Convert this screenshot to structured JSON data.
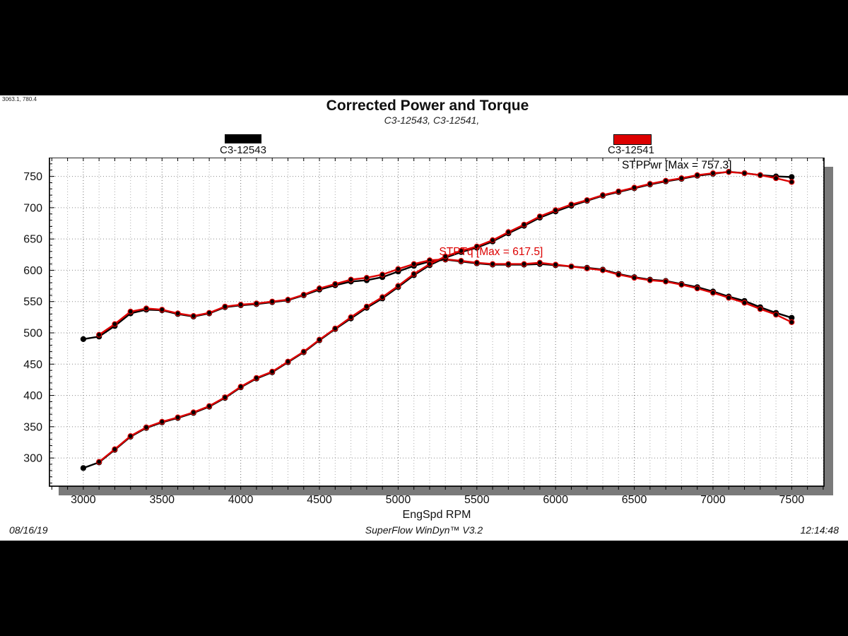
{
  "window": {
    "cursor_readout": "3063.1, 780.4"
  },
  "header": {
    "title": "Corrected Power and Torque",
    "subtitle": "C3-12543, C3-12541,"
  },
  "legend": [
    {
      "label": "C3-12543",
      "color": "#000000"
    },
    {
      "label": "C3-12541",
      "color": "#dd0000"
    }
  ],
  "footer": {
    "date": "08/16/19",
    "app": "SuperFlow WinDyn™ V3.2",
    "time": "12:14:48"
  },
  "chart_data": {
    "type": "line",
    "title": "Corrected Power and Torque",
    "subtitle": "C3-12543, C3-12541,",
    "xlabel": "EngSpd RPM",
    "ylabel": "",
    "axes": {
      "xlim": [
        2785,
        7705
      ],
      "ylim": [
        255,
        780
      ],
      "x_ticks": [
        3000,
        3500,
        4000,
        4500,
        5000,
        5500,
        6000,
        6500,
        7000,
        7500
      ],
      "y_ticks": [
        300,
        350,
        400,
        450,
        500,
        550,
        600,
        650,
        700,
        750
      ],
      "x_grid_minor_step": 100,
      "y_tick_minor_step": 10,
      "grid": "dotted"
    },
    "annotations": [
      {
        "text": "STPPwr [Max = 757.3]",
        "color": "#000000",
        "x": 6770,
        "y": 768
      },
      {
        "text": "STPTq [Max = 617.5]",
        "color": "#dd0000",
        "x": 5590,
        "y": 630
      }
    ],
    "series": [
      {
        "name": "C3-12543 STPTq",
        "run": "C3-12543",
        "channel": "STPTq",
        "color": "#000000",
        "x_start": 3000,
        "x_step": 100,
        "values": [
          490,
          494,
          511,
          531,
          537,
          536,
          530,
          526,
          531,
          541,
          544,
          546,
          549,
          552,
          560,
          569,
          576,
          582,
          584,
          589,
          598,
          607,
          614,
          617,
          614,
          611,
          609,
          609,
          609,
          610,
          608,
          606,
          604,
          601,
          594,
          589,
          585,
          583,
          578,
          573,
          566,
          558,
          551,
          541,
          532,
          524
        ]
      },
      {
        "name": "C3-12541 STPTq",
        "run": "C3-12541",
        "channel": "STPTq",
        "color": "#dd0000",
        "x_start": 3100,
        "x_step": 100,
        "values": [
          497,
          514,
          534,
          539,
          537,
          531,
          527,
          532,
          542,
          545,
          547,
          550,
          553,
          561,
          571,
          578,
          585,
          588,
          593,
          602,
          610,
          616,
          617.5,
          615,
          612,
          610,
          610,
          610,
          612,
          609,
          606,
          603,
          600,
          593,
          588,
          584,
          582,
          577,
          571,
          564,
          556,
          548,
          538,
          529,
          517
        ]
      },
      {
        "name": "C3-12543 STPPwr",
        "run": "C3-12543",
        "channel": "STPPwr",
        "color": "#000000",
        "x_start": 3000,
        "x_step": 100,
        "values": [
          284,
          293,
          313,
          334,
          348,
          357,
          364,
          372,
          382,
          396,
          413,
          427,
          437,
          453,
          469,
          488,
          506,
          523,
          540,
          555,
          573,
          592,
          608,
          620,
          629,
          636,
          646,
          659,
          671,
          684,
          694,
          703,
          711,
          719,
          725,
          731,
          737,
          742,
          746,
          751,
          754,
          757.3,
          755,
          752,
          750,
          749
        ]
      },
      {
        "name": "C3-12541 STPPwr",
        "run": "C3-12541",
        "channel": "STPPwr",
        "color": "#dd0000",
        "x_start": 3100,
        "x_step": 100,
        "values": [
          294,
          314,
          335,
          349,
          358,
          365,
          373,
          383,
          397,
          414,
          428,
          438,
          454,
          470,
          489,
          507,
          525,
          542,
          557,
          575,
          594,
          610,
          622,
          631,
          638,
          648,
          661,
          673,
          686,
          696,
          705,
          712,
          720,
          726,
          732,
          738,
          743,
          747,
          752,
          755,
          757,
          755,
          752,
          747,
          741
        ]
      }
    ]
  }
}
